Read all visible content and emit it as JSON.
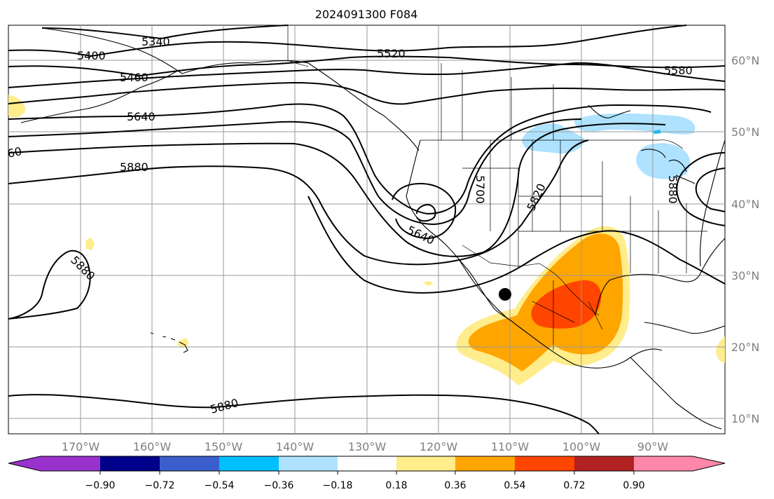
{
  "title": "2024091300 F084",
  "map": {
    "lon_ticks": [
      "170°W",
      "160°W",
      "150°W",
      "140°W",
      "130°W",
      "120°W",
      "110°W",
      "100°W",
      "90°W"
    ],
    "lat_ticks": [
      "60°N",
      "50°N",
      "40°N",
      "30°N",
      "20°N",
      "10°N"
    ],
    "contour_labels": [
      "5340",
      "5400",
      "5460",
      "5520",
      "5580",
      "5640",
      "60",
      "5880",
      "5700",
      "5820",
      "5880",
      "5640",
      "5880",
      "5880"
    ],
    "marker": "storm-center-dot"
  },
  "colorbar": {
    "tick_labels": [
      "−0.90",
      "−0.72",
      "−0.54",
      "−0.36",
      "−0.18",
      "0.18",
      "0.36",
      "0.54",
      "0.72",
      "0.90"
    ],
    "colors": [
      "#9932cc",
      "#00008b",
      "#3a5fcd",
      "#00bfff",
      "#aee2ff",
      "#ffffff",
      "#ffec8b",
      "#ffa500",
      "#ff4500",
      "#b22222",
      "#ff88aa"
    ]
  }
}
